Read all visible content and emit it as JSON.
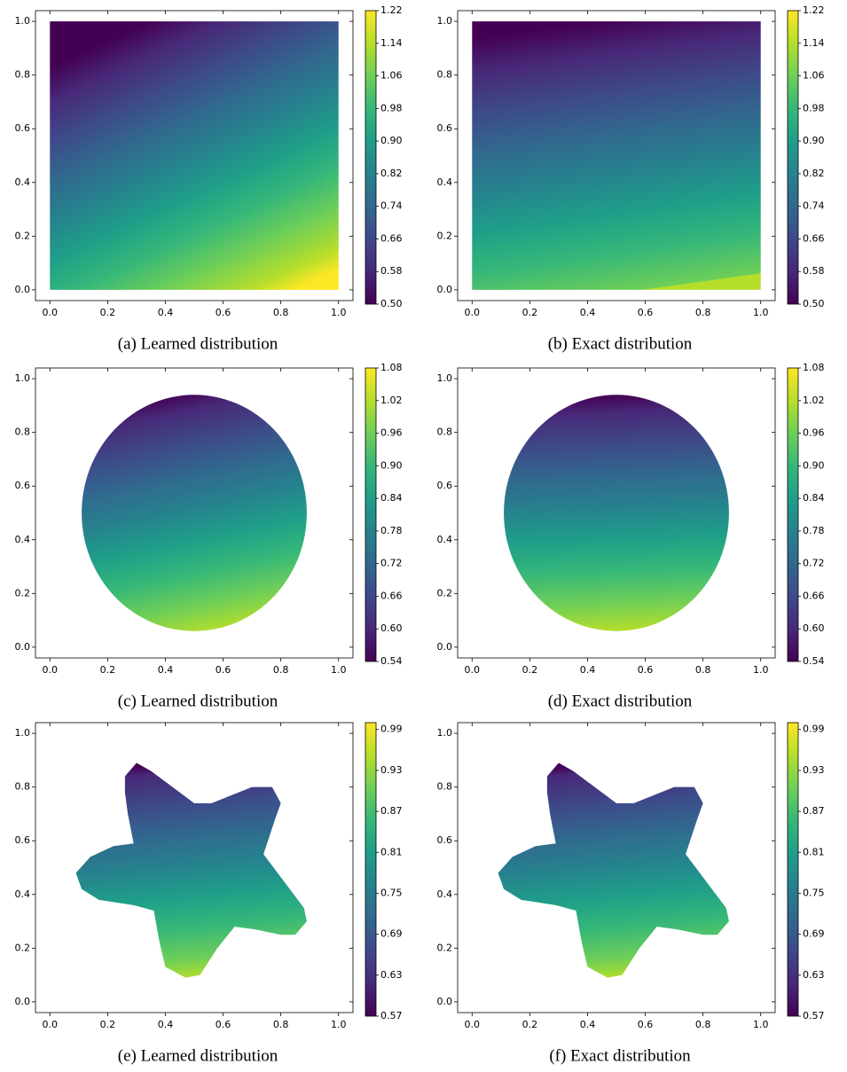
{
  "chart_data": [
    {
      "type": "contour",
      "caption": "(a) Learned distribution",
      "shape": "square",
      "colormap": "viridis",
      "xlim": [
        -0.05,
        1.05
      ],
      "ylim": [
        -0.04,
        1.04
      ],
      "xticks": [
        {
          "value": 0,
          "label": "0.0"
        },
        0.2,
        0.4,
        0.6,
        0.8,
        {
          "value": 1,
          "label": "1.0"
        }
      ],
      "yticks": [
        {
          "value": 0,
          "label": "0.0"
        },
        0.2,
        0.4,
        0.6,
        0.8,
        {
          "value": 1,
          "label": "1.0"
        }
      ],
      "clim": [
        0.5,
        1.22
      ],
      "cticks": [
        {
          "value": 0.5,
          "label": "0.50"
        },
        0.58,
        0.66,
        0.74,
        0.82,
        {
          "value": 0.9,
          "label": "0.90"
        },
        0.98,
        1.06,
        1.14,
        1.22
      ]
    },
    {
      "type": "contour",
      "caption": "(b) Exact distribution",
      "shape": "square",
      "colormap": "viridis",
      "xlim": [
        -0.05,
        1.05
      ],
      "ylim": [
        -0.04,
        1.04
      ],
      "xticks": [
        {
          "value": 0,
          "label": "0.0"
        },
        0.2,
        0.4,
        0.6,
        0.8,
        {
          "value": 1,
          "label": "1.0"
        }
      ],
      "yticks": [
        {
          "value": 0,
          "label": "0.0"
        },
        0.2,
        0.4,
        0.6,
        0.8,
        {
          "value": 1,
          "label": "1.0"
        }
      ],
      "clim": [
        0.5,
        1.22
      ],
      "cticks": [
        {
          "value": 0.5,
          "label": "0.50"
        },
        0.58,
        0.66,
        0.74,
        0.82,
        {
          "value": 0.9,
          "label": "0.90"
        },
        0.98,
        1.06,
        1.14,
        1.22
      ]
    },
    {
      "type": "contour",
      "caption": "(c) Learned distribution",
      "shape": "disk",
      "colormap": "viridis",
      "xlim": [
        -0.05,
        1.05
      ],
      "ylim": [
        -0.04,
        1.04
      ],
      "xticks": [
        {
          "value": 0,
          "label": "0.0"
        },
        0.2,
        0.4,
        0.6,
        0.8,
        {
          "value": 1,
          "label": "1.0"
        }
      ],
      "yticks": [
        {
          "value": 0,
          "label": "0.0"
        },
        0.2,
        0.4,
        0.6,
        0.8,
        {
          "value": 1,
          "label": "1.0"
        }
      ],
      "clim": [
        0.54,
        1.08
      ],
      "cticks": [
        0.54,
        {
          "value": 0.6,
          "label": "0.60"
        },
        0.66,
        0.72,
        0.78,
        0.84,
        {
          "value": 0.9,
          "label": "0.90"
        },
        0.96,
        1.02,
        1.08
      ]
    },
    {
      "type": "contour",
      "caption": "(d) Exact distribution",
      "shape": "disk",
      "colormap": "viridis",
      "xlim": [
        -0.05,
        1.05
      ],
      "ylim": [
        -0.04,
        1.04
      ],
      "xticks": [
        {
          "value": 0,
          "label": "0.0"
        },
        0.2,
        0.4,
        0.6,
        0.8,
        {
          "value": 1,
          "label": "1.0"
        }
      ],
      "yticks": [
        {
          "value": 0,
          "label": "0.0"
        },
        0.2,
        0.4,
        0.6,
        0.8,
        {
          "value": 1,
          "label": "1.0"
        }
      ],
      "clim": [
        0.54,
        1.08
      ],
      "cticks": [
        0.54,
        {
          "value": 0.6,
          "label": "0.60"
        },
        0.66,
        0.72,
        0.78,
        0.84,
        {
          "value": 0.9,
          "label": "0.90"
        },
        0.96,
        1.02,
        1.08
      ]
    },
    {
      "type": "contour",
      "caption": "(e) Learned distribution",
      "shape": "star",
      "colormap": "viridis",
      "xlim": [
        -0.05,
        1.05
      ],
      "ylim": [
        -0.04,
        1.04
      ],
      "xticks": [
        {
          "value": 0,
          "label": "0.0"
        },
        0.2,
        0.4,
        0.6,
        0.8,
        {
          "value": 1,
          "label": "1.0"
        }
      ],
      "yticks": [
        {
          "value": 0,
          "label": "0.0"
        },
        0.2,
        0.4,
        0.6,
        0.8,
        {
          "value": 1,
          "label": "1.0"
        }
      ],
      "clim": [
        0.57,
        1.0
      ],
      "cticks": [
        0.57,
        0.63,
        0.69,
        0.75,
        0.81,
        0.87,
        0.93,
        0.99
      ]
    },
    {
      "type": "contour",
      "caption": "(f) Exact distribution",
      "shape": "star",
      "colormap": "viridis",
      "xlim": [
        -0.05,
        1.05
      ],
      "ylim": [
        -0.04,
        1.04
      ],
      "xticks": [
        {
          "value": 0,
          "label": "0.0"
        },
        0.2,
        0.4,
        0.6,
        0.8,
        {
          "value": 1,
          "label": "1.0"
        }
      ],
      "yticks": [
        {
          "value": 0,
          "label": "0.0"
        },
        0.2,
        0.4,
        0.6,
        0.8,
        {
          "value": 1,
          "label": "1.0"
        }
      ],
      "clim": [
        0.57,
        1.0
      ],
      "cticks": [
        0.57,
        0.63,
        0.69,
        0.75,
        0.81,
        0.87,
        0.93,
        0.99
      ]
    }
  ]
}
